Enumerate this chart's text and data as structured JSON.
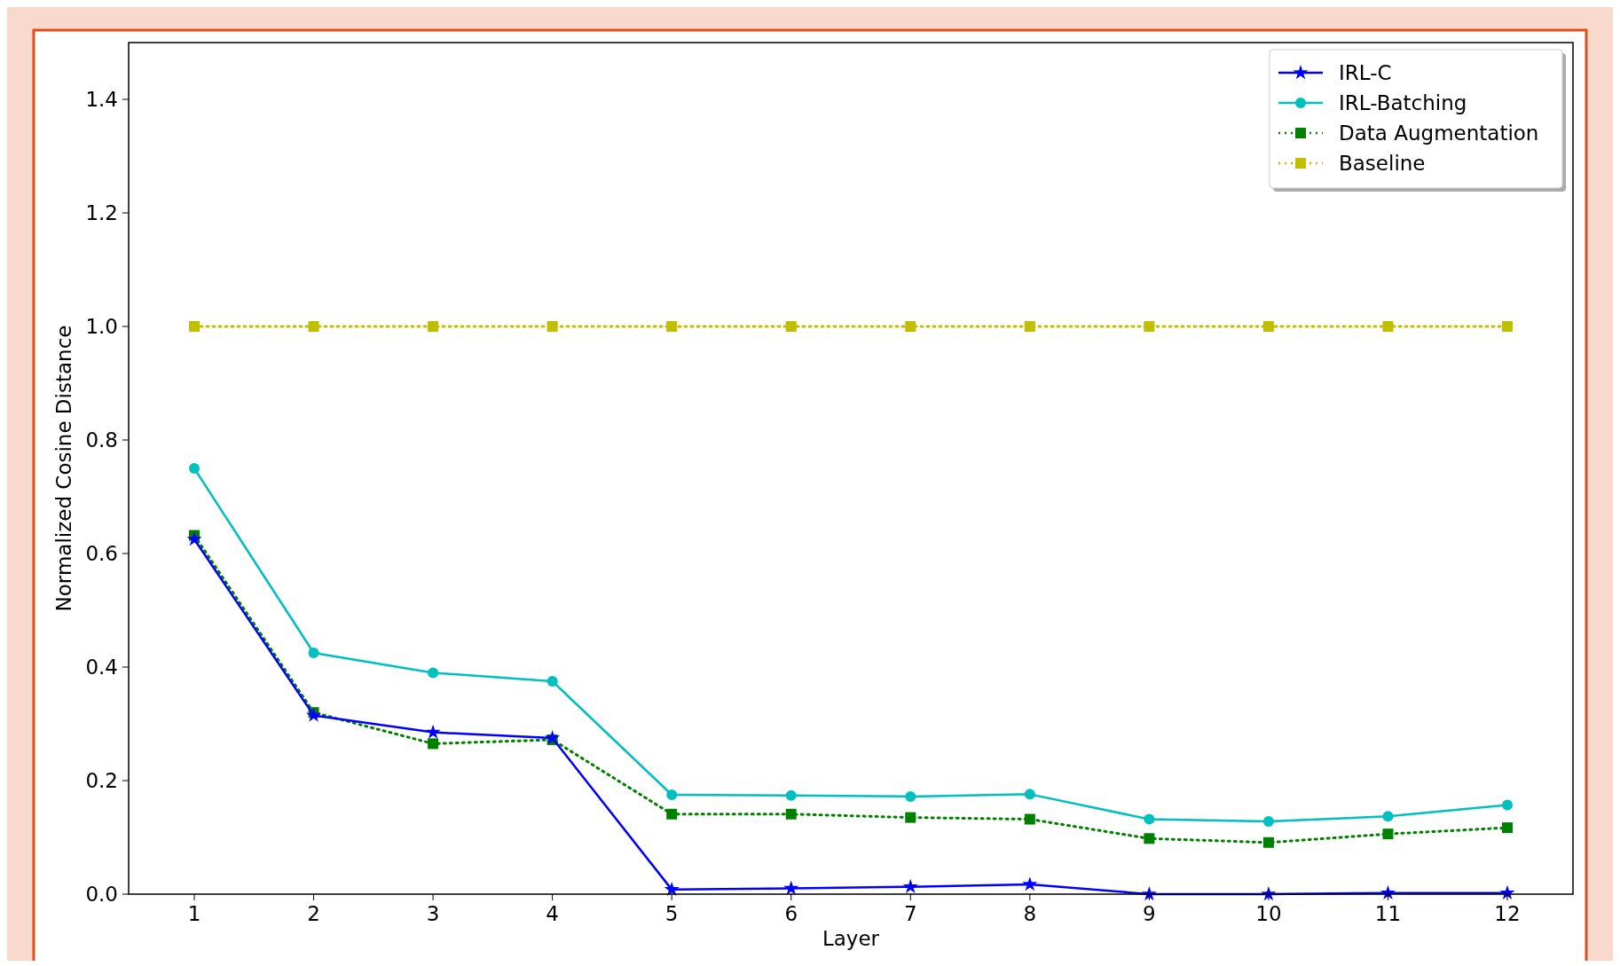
{
  "chart_data": {
    "type": "line",
    "xlabel": "Layer",
    "ylabel": "Normalized Cosine Distance",
    "x": [
      1,
      2,
      3,
      4,
      5,
      6,
      7,
      8,
      9,
      10,
      11,
      12
    ],
    "xlim": [
      0.45,
      12.55
    ],
    "xticks": [
      1,
      2,
      3,
      4,
      5,
      6,
      7,
      8,
      9,
      10,
      11,
      12
    ],
    "ylim": [
      0,
      1.5
    ],
    "yticks": [
      {
        "value": 0,
        "label": "0.0"
      },
      {
        "value": 0.2,
        "label": "0.2"
      },
      {
        "value": 0.4,
        "label": "0.4"
      },
      {
        "value": 0.6,
        "label": "0.6"
      },
      {
        "value": 0.8,
        "label": "0.8"
      },
      {
        "value": 1.0,
        "label": "1.0"
      },
      {
        "value": 1.2,
        "label": "1.2"
      },
      {
        "value": 1.4,
        "label": "1.4"
      }
    ],
    "grid": false,
    "legend": "top right",
    "series": [
      {
        "name": "IRL-C",
        "color": "#0000ff",
        "marker": "star",
        "line_style": "solid",
        "values": [
          0.625,
          0.315,
          0.285,
          0.275,
          0.008,
          0.01,
          0.013,
          0.017,
          0.0,
          0.0,
          0.002,
          0.002
        ]
      },
      {
        "name": "IRL-Batching",
        "color": "#00bfbf",
        "marker": "circle",
        "line_style": "solid",
        "values": [
          0.75,
          0.425,
          0.39,
          0.375,
          0.175,
          0.174,
          0.172,
          0.176,
          0.132,
          0.128,
          0.137,
          0.157
        ]
      },
      {
        "name": "Data Augmentation",
        "color": "#008000",
        "marker": "square",
        "line_style": "dotted",
        "values": [
          0.632,
          0.32,
          0.265,
          0.272,
          0.141,
          0.141,
          0.135,
          0.132,
          0.098,
          0.091,
          0.106,
          0.117
        ]
      },
      {
        "name": "Baseline",
        "color": "#bfbf00",
        "marker": "square",
        "line_style": "dotted",
        "values": [
          1.0,
          1.0,
          1.0,
          1.0,
          1.0,
          1.0,
          1.0,
          1.0,
          1.0,
          1.0,
          1.0,
          1.0
        ]
      }
    ]
  }
}
